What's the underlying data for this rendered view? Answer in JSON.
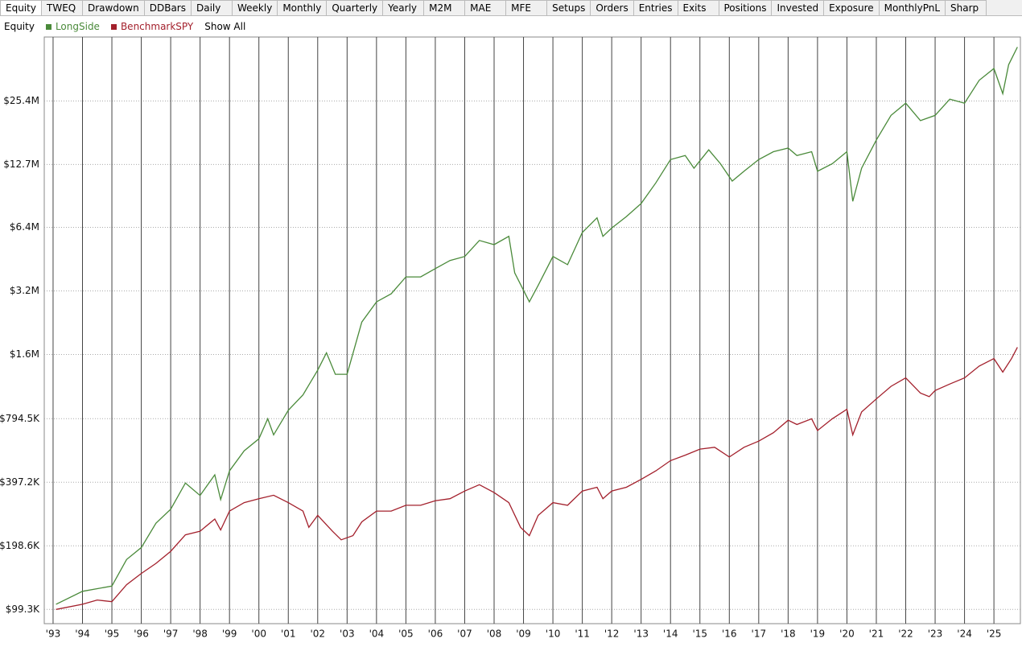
{
  "tabs": [
    "Equity",
    "TWEQ",
    "Drawdown",
    "DDBars",
    "Daily",
    "Weekly",
    "Monthly",
    "Quarterly",
    "Yearly",
    "M2M",
    "MAE",
    "MFE",
    "Setups",
    "Orders",
    "Entries",
    "Exits",
    "Positions",
    "Invested",
    "Exposure",
    "MonthlyPnL",
    "Sharp"
  ],
  "header": {
    "label": "Equity",
    "show_all": "Show All"
  },
  "chart_data": {
    "type": "line",
    "log_scale": true,
    "grid": true,
    "xlim": [
      1992.7,
      2025.9
    ],
    "ylim": [
      85000,
      51000000
    ],
    "xticks": [
      {
        "value": 1993,
        "label": "'93"
      },
      {
        "value": 1994,
        "label": "'94"
      },
      {
        "value": 1995,
        "label": "'95"
      },
      {
        "value": 1996,
        "label": "'96"
      },
      {
        "value": 1997,
        "label": "'97"
      },
      {
        "value": 1998,
        "label": "'98"
      },
      {
        "value": 1999,
        "label": "'99"
      },
      {
        "value": 2000,
        "label": "'00"
      },
      {
        "value": 2001,
        "label": "'01"
      },
      {
        "value": 2002,
        "label": "'02"
      },
      {
        "value": 2003,
        "label": "'03"
      },
      {
        "value": 2004,
        "label": "'04"
      },
      {
        "value": 2005,
        "label": "'05"
      },
      {
        "value": 2006,
        "label": "'06"
      },
      {
        "value": 2007,
        "label": "'07"
      },
      {
        "value": 2008,
        "label": "'08"
      },
      {
        "value": 2009,
        "label": "'09"
      },
      {
        "value": 2010,
        "label": "'10"
      },
      {
        "value": 2011,
        "label": "'11"
      },
      {
        "value": 2012,
        "label": "'12"
      },
      {
        "value": 2013,
        "label": "'13"
      },
      {
        "value": 2014,
        "label": "'14"
      },
      {
        "value": 2015,
        "label": "'15"
      },
      {
        "value": 2016,
        "label": "'16"
      },
      {
        "value": 2017,
        "label": "'17"
      },
      {
        "value": 2018,
        "label": "'18"
      },
      {
        "value": 2019,
        "label": "'19"
      },
      {
        "value": 2020,
        "label": "'20"
      },
      {
        "value": 2021,
        "label": "'21"
      },
      {
        "value": 2022,
        "label": "'22"
      },
      {
        "value": 2023,
        "label": "'23"
      },
      {
        "value": 2024,
        "label": "'24"
      },
      {
        "value": 2025,
        "label": "'25"
      }
    ],
    "yticks": [
      {
        "value": 99300,
        "label": "$99.3K"
      },
      {
        "value": 198600,
        "label": "$198.6K"
      },
      {
        "value": 397200,
        "label": "$397.2K"
      },
      {
        "value": 794500,
        "label": "$794.5K"
      },
      {
        "value": 1600000,
        "label": "$1.6M"
      },
      {
        "value": 3200000,
        "label": "$3.2M"
      },
      {
        "value": 6400000,
        "label": "$6.4M"
      },
      {
        "value": 12700000,
        "label": "$12.7M"
      },
      {
        "value": 25400000,
        "label": "$25.4M"
      }
    ],
    "series": [
      {
        "name": "LongSide",
        "color": "#4a8a3a",
        "x": [
          1993.1,
          1994.0,
          1995.0,
          1995.5,
          1996.0,
          1996.5,
          1997.0,
          1997.5,
          1998.0,
          1998.5,
          1998.7,
          1999.0,
          1999.5,
          2000.0,
          2000.3,
          2000.5,
          2001.0,
          2001.5,
          2002.0,
          2002.3,
          2002.6,
          2003.0,
          2003.5,
          2004.0,
          2004.5,
          2005.0,
          2005.5,
          2006.0,
          2006.5,
          2007.0,
          2007.5,
          2008.0,
          2008.5,
          2008.7,
          2009.2,
          2009.5,
          2010.0,
          2010.5,
          2011.0,
          2011.5,
          2011.7,
          2012.0,
          2012.5,
          2013.0,
          2013.5,
          2014.0,
          2014.5,
          2014.8,
          2015.3,
          2015.7,
          2016.1,
          2016.5,
          2017.0,
          2017.5,
          2018.0,
          2018.3,
          2018.8,
          2019.0,
          2019.5,
          2020.0,
          2020.2,
          2020.5,
          2021.0,
          2021.5,
          2022.0,
          2022.5,
          2023.0,
          2023.5,
          2024.0,
          2024.5,
          2025.0,
          2025.3,
          2025.5,
          2025.8
        ],
        "values": [
          105000,
          121000,
          128000,
          171000,
          195000,
          254000,
          296000,
          394000,
          344000,
          431000,
          329000,
          450000,
          560000,
          638000,
          794000,
          666000,
          870000,
          1030000,
          1350000,
          1630000,
          1290000,
          1290000,
          2280000,
          2840000,
          3100000,
          3730000,
          3730000,
          4080000,
          4460000,
          4660000,
          5550000,
          5300000,
          5800000,
          3900000,
          2840000,
          3400000,
          4660000,
          4260000,
          6050000,
          7100000,
          5800000,
          6350000,
          7200000,
          8300000,
          10400000,
          13400000,
          14000000,
          12200000,
          14900000,
          12800000,
          10600000,
          11800000,
          13400000,
          14600000,
          15200000,
          14000000,
          14600000,
          11800000,
          12800000,
          14600000,
          8500000,
          12200000,
          16600000,
          21700000,
          24800000,
          20500000,
          21700000,
          25900000,
          24800000,
          31800000,
          36200000,
          27500000,
          37700000,
          45700000
        ]
      },
      {
        "name": "BenchmarkSPY",
        "color": "#a3202c",
        "x": [
          1993.1,
          1994.0,
          1994.5,
          1995.0,
          1995.5,
          1996.0,
          1996.5,
          1997.0,
          1997.5,
          1998.0,
          1998.5,
          1998.7,
          1999.0,
          1999.5,
          2000.0,
          2000.5,
          2001.0,
          2001.5,
          2001.7,
          2002.0,
          2002.5,
          2002.8,
          2003.2,
          2003.5,
          2004.0,
          2004.5,
          2005.0,
          2005.5,
          2006.0,
          2006.5,
          2007.0,
          2007.5,
          2008.0,
          2008.5,
          2008.9,
          2009.2,
          2009.5,
          2010.0,
          2010.5,
          2011.0,
          2011.5,
          2011.7,
          2012.0,
          2012.5,
          2013.0,
          2013.5,
          2014.0,
          2014.5,
          2015.0,
          2015.5,
          2016.0,
          2016.5,
          2017.0,
          2017.5,
          2018.0,
          2018.3,
          2018.8,
          2019.0,
          2019.5,
          2020.0,
          2020.2,
          2020.5,
          2021.0,
          2021.5,
          2022.0,
          2022.5,
          2022.8,
          2023.0,
          2023.5,
          2024.0,
          2024.5,
          2025.0,
          2025.3,
          2025.6,
          2025.8
        ],
        "values": [
          99300,
          105000,
          110000,
          108000,
          130000,
          147000,
          164000,
          187000,
          224000,
          233000,
          266000,
          236000,
          290000,
          318000,
          332000,
          345000,
          318000,
          290000,
          243000,
          277000,
          233000,
          212000,
          222000,
          258000,
          290000,
          290000,
          309000,
          309000,
          325000,
          332000,
          361000,
          387000,
          355000,
          318000,
          243000,
          222000,
          277000,
          318000,
          309000,
          361000,
          376000,
          332000,
          361000,
          376000,
          410000,
          450000,
          503000,
          534000,
          570000,
          582000,
          523000,
          582000,
          622000,
          682000,
          781000,
          746000,
          794000,
          698000,
          794000,
          880000,
          666000,
          855000,
          986000,
          1130000,
          1240000,
          1050000,
          1010000,
          1080000,
          1160000,
          1240000,
          1410000,
          1530000,
          1320000,
          1530000,
          1730000
        ]
      }
    ]
  }
}
